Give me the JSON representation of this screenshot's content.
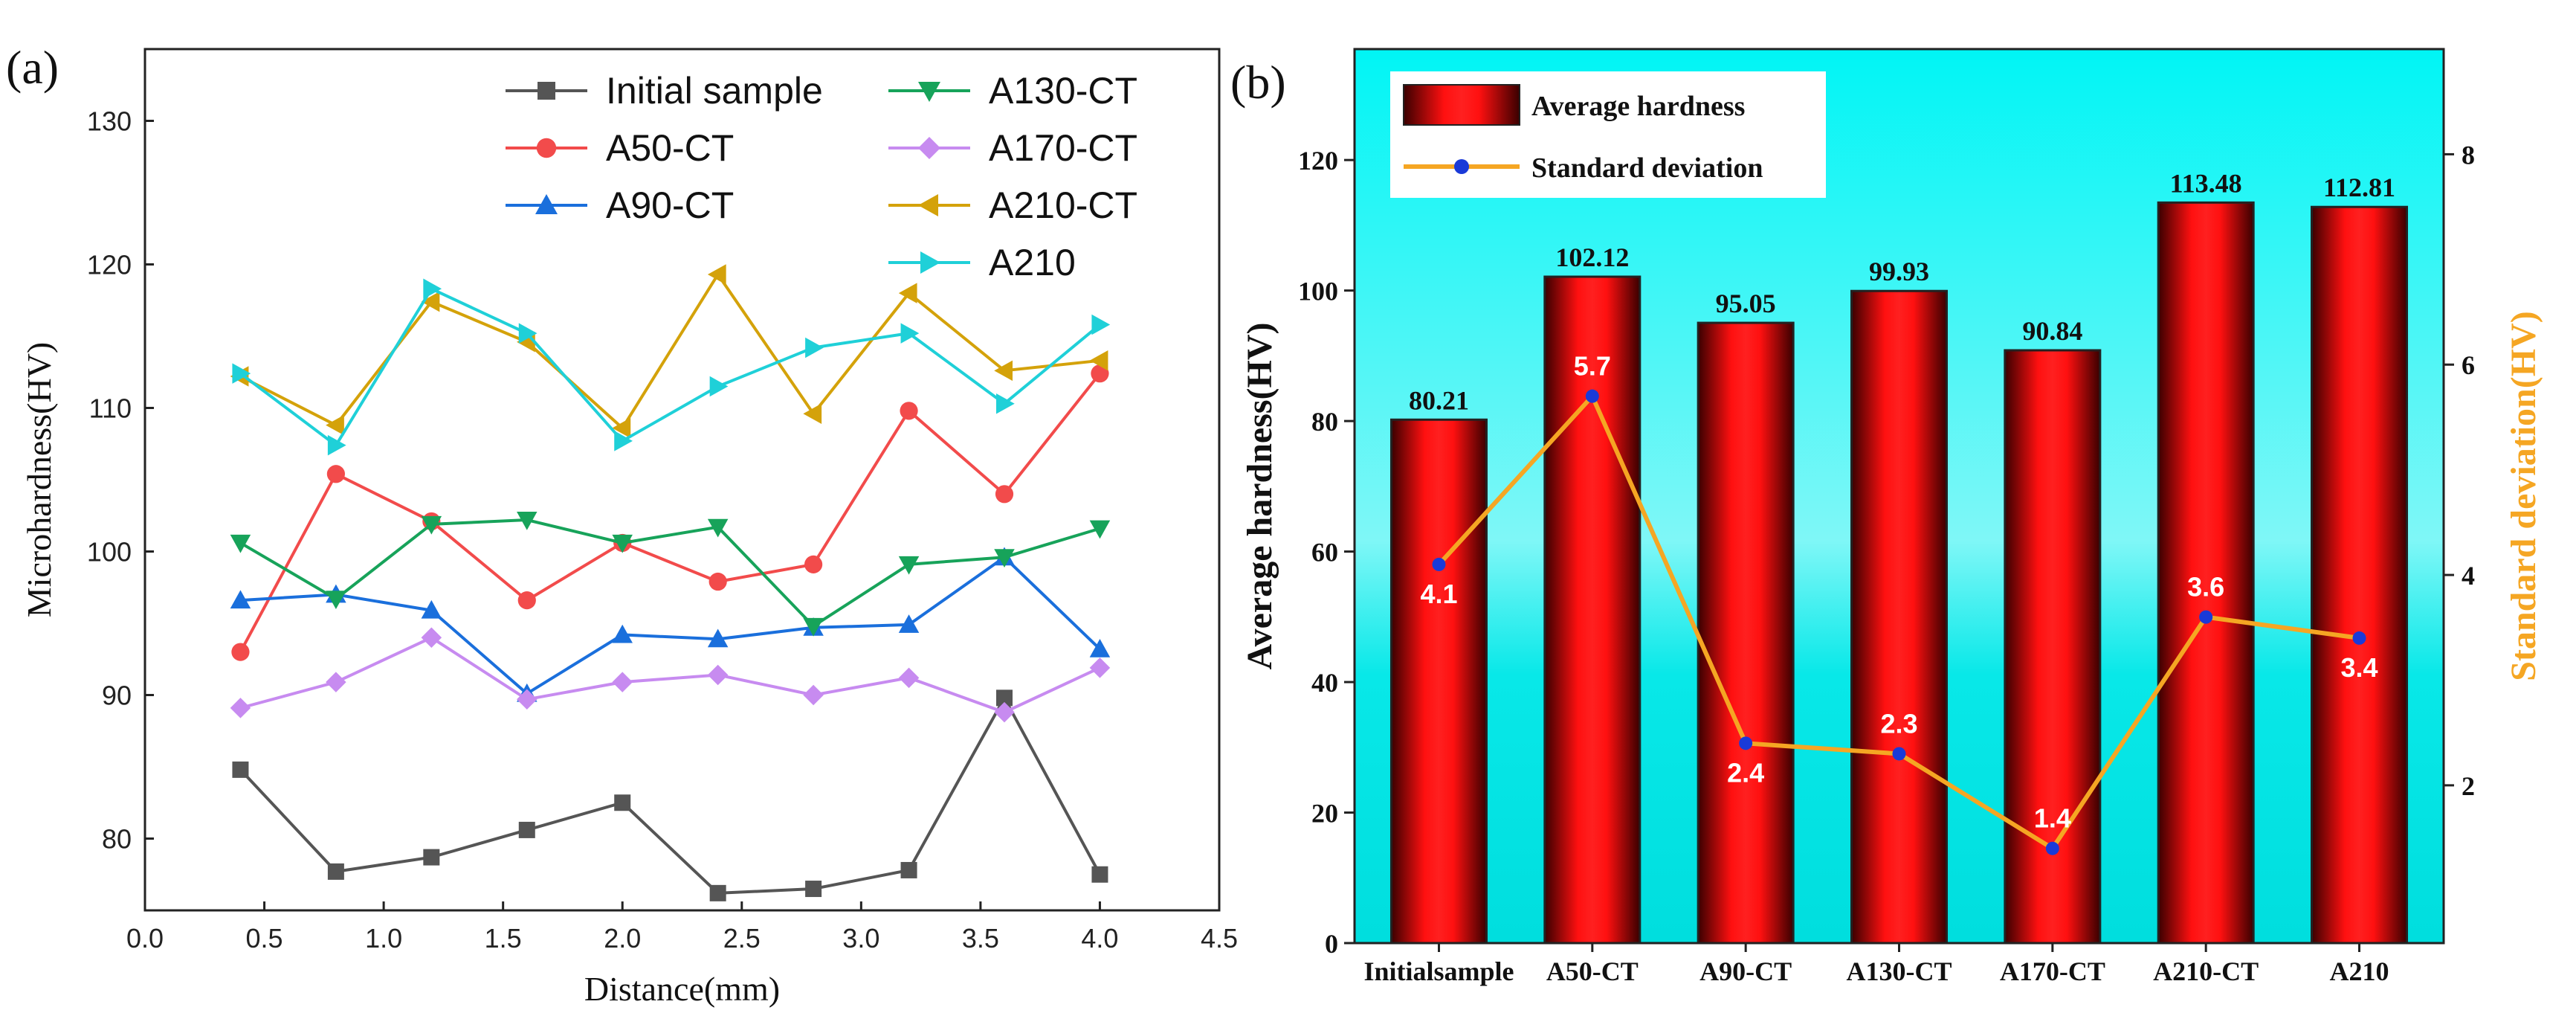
{
  "chart_data": [
    {
      "panel_label": "(a)",
      "type": "line",
      "xlabel": "Distance(mm)",
      "ylabel": "Microhardness(HV)",
      "xlim": [
        0.0,
        4.5
      ],
      "ylim": [
        75,
        135
      ],
      "xticks": [
        "0.0",
        "0.5",
        "1.0",
        "1.5",
        "2.0",
        "2.5",
        "3.0",
        "3.5",
        "4.0",
        "4.5"
      ],
      "yticks": [
        "80",
        "90",
        "100",
        "110",
        "120",
        "130"
      ],
      "x": [
        0.4,
        0.8,
        1.2,
        1.6,
        2.0,
        2.4,
        2.8,
        3.2,
        3.6,
        4.0
      ],
      "series": [
        {
          "name": "Initial sample",
          "color": "#555555",
          "marker": "square",
          "values": [
            84.8,
            77.7,
            78.7,
            80.6,
            82.5,
            76.2,
            76.5,
            77.8,
            89.8,
            77.5
          ]
        },
        {
          "name": "A50-CT",
          "color": "#f24b4b",
          "marker": "circle",
          "values": [
            93.0,
            105.4,
            102.1,
            96.6,
            100.6,
            97.9,
            99.1,
            109.8,
            104.0,
            112.4
          ]
        },
        {
          "name": "A90-CT",
          "color": "#1a6fdc",
          "marker": "triangle-up",
          "values": [
            96.6,
            97.0,
            95.9,
            90.1,
            94.2,
            93.9,
            94.7,
            94.9,
            99.6,
            93.2
          ]
        },
        {
          "name": "A130-CT",
          "color": "#17a35a",
          "marker": "triangle-down",
          "values": [
            100.6,
            96.7,
            101.9,
            102.2,
            100.6,
            101.7,
            94.8,
            99.1,
            99.6,
            101.6
          ]
        },
        {
          "name": "A170-CT",
          "color": "#c78bf0",
          "marker": "diamond",
          "values": [
            89.1,
            90.9,
            94.0,
            89.7,
            90.9,
            91.4,
            90.0,
            91.2,
            88.8,
            91.9
          ]
        },
        {
          "name": "A210-CT",
          "color": "#d4a20a",
          "marker": "triangle-left",
          "values": [
            112.2,
            108.8,
            117.4,
            114.6,
            108.6,
            119.3,
            109.6,
            118.0,
            112.6,
            113.3
          ]
        },
        {
          "name": "A210",
          "color": "#1fd0d8",
          "marker": "triangle-right",
          "values": [
            112.4,
            107.4,
            118.3,
            115.2,
            107.7,
            111.5,
            114.2,
            115.2,
            110.3,
            115.8
          ]
        }
      ]
    },
    {
      "panel_label": "(b)",
      "type": "bar",
      "categories": [
        "Initialsample",
        "A50-CT",
        "A90-CT",
        "A130-CT",
        "A170-CT",
        "A210-CT",
        "A210"
      ],
      "ylabel": "Average hardness(HV)",
      "y2label": "Standard deviation(HV)",
      "ylim": [
        0,
        137
      ],
      "y2lim": [
        0.5,
        9.0
      ],
      "yticks": [
        "0",
        "20",
        "40",
        "60",
        "80",
        "100",
        "120"
      ],
      "y2ticks": [
        "2",
        "4",
        "6",
        "8"
      ],
      "series": [
        {
          "name": "Average hardness",
          "axis": "left",
          "color": "#ff0000",
          "values": [
            80.21,
            102.12,
            95.05,
            99.93,
            90.84,
            113.48,
            112.81
          ],
          "labels": [
            "80.21",
            "102.12",
            "95.05",
            "99.93",
            "90.84",
            "113.48",
            "112.81"
          ]
        },
        {
          "name": "Standard deviation",
          "axis": "right",
          "color": "#f5a623",
          "marker_color": "#1a3ad8",
          "values": [
            4.1,
            5.7,
            2.4,
            2.3,
            1.4,
            3.6,
            3.4
          ],
          "labels": [
            "4.1",
            "5.7",
            "2.4",
            "2.3",
            "1.4",
            "3.6",
            "3.4"
          ]
        }
      ]
    }
  ]
}
